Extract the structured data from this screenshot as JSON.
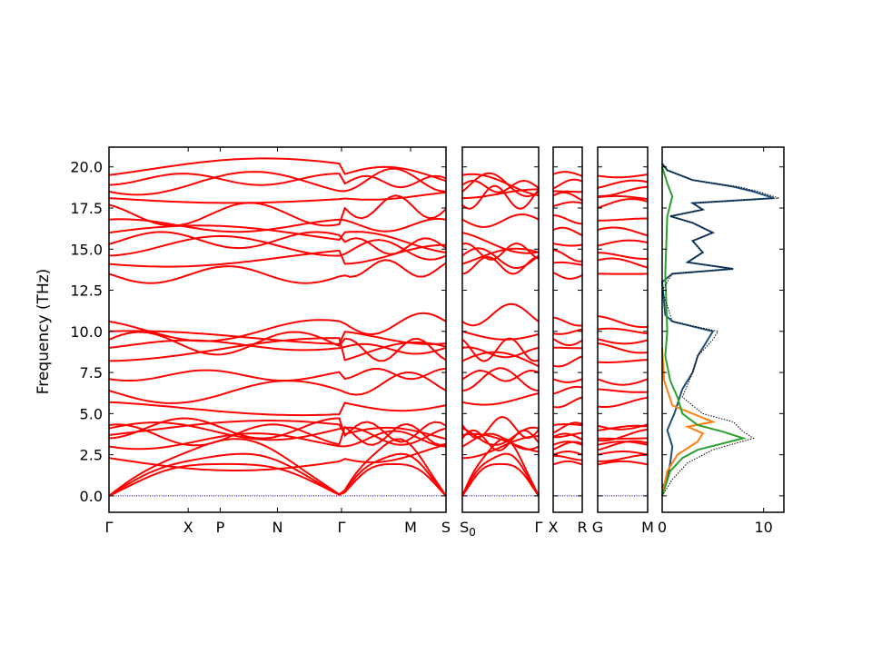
{
  "chart_data": {
    "type": "line",
    "ylabel": "Frequency (THz)",
    "ylim": [
      -1.0,
      21.2
    ],
    "yticks": [
      "0.0",
      "2.5",
      "5.0",
      "7.5",
      "10.0",
      "12.5",
      "15.0",
      "17.5",
      "20.0"
    ],
    "ytick_values": [
      0,
      2.5,
      5.0,
      7.5,
      10.0,
      12.5,
      15.0,
      17.5,
      20.0
    ],
    "band_color": "#ff0000",
    "zero_line_color": "#0000cc",
    "panels": [
      {
        "labels": [
          "Γ",
          "X",
          "P",
          "N",
          "Γ",
          "M",
          "S"
        ],
        "label_positions": [
          0,
          0.235,
          0.33,
          0.5,
          0.69,
          0.895,
          1.0
        ]
      },
      {
        "labels": [
          "S0",
          "Γ"
        ],
        "label_positions": [
          0,
          1.0
        ]
      },
      {
        "labels": [
          "X",
          "R"
        ],
        "label_positions": [
          0,
          1.0
        ]
      },
      {
        "labels": [
          "G",
          "M"
        ],
        "label_positions": [
          0,
          1.0
        ]
      }
    ],
    "bands_at_gamma": [
      0,
      0,
      0,
      2.3,
      3.0,
      3.5,
      3.7,
      4.1,
      4.3,
      5.7,
      6.4,
      7.1,
      8.2,
      9.0,
      9.5,
      10.0,
      10.6,
      13.5,
      14.1,
      14.6,
      15.3,
      16.0,
      16.8,
      17.7,
      18.1,
      18.5,
      18.9,
      19.5
    ],
    "dos": {
      "xlim": [
        0,
        12
      ],
      "xticks": [
        "0",
        "10"
      ],
      "xtick_values": [
        0,
        10
      ],
      "series": [
        {
          "color": "#1f4e79",
          "style": "solid",
          "points": [
            [
              0.0,
              0.5
            ],
            [
              0.5,
              1.0
            ],
            [
              0.8,
              2.0
            ],
            [
              1.0,
              3.0
            ],
            [
              0.5,
              4.0
            ],
            [
              1.2,
              5.0
            ],
            [
              2.0,
              6.5
            ],
            [
              3.0,
              7.5
            ],
            [
              3.5,
              8.5
            ],
            [
              4.5,
              9.5
            ],
            [
              5.0,
              10.0
            ],
            [
              1.0,
              10.6
            ],
            [
              0.3,
              11.0
            ],
            [
              0.0,
              13.0
            ],
            [
              1.0,
              13.5
            ],
            [
              7.0,
              13.8
            ],
            [
              2.5,
              14.2
            ],
            [
              4.0,
              14.8
            ],
            [
              3.0,
              15.5
            ],
            [
              5.0,
              16.0
            ],
            [
              3.0,
              16.6
            ],
            [
              0.8,
              17.0
            ],
            [
              4.0,
              17.4
            ],
            [
              3.0,
              17.8
            ],
            [
              11.0,
              18.1
            ],
            [
              9.0,
              18.5
            ],
            [
              7.0,
              18.8
            ],
            [
              3.0,
              19.2
            ],
            [
              0.5,
              19.8
            ],
            [
              0.0,
              20.2
            ]
          ]
        },
        {
          "color": "#ff7f0e",
          "style": "solid",
          "points": [
            [
              0.0,
              0.0
            ],
            [
              0.5,
              1.5
            ],
            [
              1.5,
              2.5
            ],
            [
              3.5,
              3.3
            ],
            [
              4.0,
              3.8
            ],
            [
              2.5,
              4.2
            ],
            [
              5.0,
              4.5
            ],
            [
              1.0,
              5.5
            ],
            [
              0.2,
              7.0
            ],
            [
              0.0,
              9.0
            ]
          ]
        },
        {
          "color": "#2ca02c",
          "style": "solid",
          "points": [
            [
              0.0,
              0.0
            ],
            [
              0.8,
              1.5
            ],
            [
              2.0,
              2.3
            ],
            [
              3.5,
              2.8
            ],
            [
              8.0,
              3.5
            ],
            [
              6.0,
              3.9
            ],
            [
              3.5,
              4.3
            ],
            [
              2.0,
              5.0
            ],
            [
              1.5,
              6.0
            ],
            [
              0.8,
              7.0
            ],
            [
              0.3,
              8.5
            ],
            [
              0.5,
              10.0
            ],
            [
              0.3,
              13.5
            ],
            [
              0.5,
              17.0
            ],
            [
              1.0,
              18.2
            ],
            [
              0.5,
              19.0
            ],
            [
              0.0,
              20.0
            ]
          ]
        },
        {
          "color": "#000000",
          "style": "dotted",
          "points": [
            [
              0.0,
              0.0
            ],
            [
              1.0,
              1.0
            ],
            [
              2.5,
              2.0
            ],
            [
              5.0,
              2.8
            ],
            [
              9.0,
              3.5
            ],
            [
              8.0,
              3.9
            ],
            [
              7.0,
              4.5
            ],
            [
              4.0,
              5.0
            ],
            [
              2.0,
              6.0
            ],
            [
              3.0,
              7.5
            ],
            [
              3.5,
              8.5
            ],
            [
              5.0,
              9.5
            ],
            [
              5.5,
              10.0
            ],
            [
              1.0,
              10.6
            ],
            [
              0.0,
              12.5
            ],
            [
              1.0,
              13.5
            ],
            [
              7.0,
              13.8
            ],
            [
              2.5,
              14.2
            ],
            [
              4.0,
              14.8
            ],
            [
              3.0,
              15.5
            ],
            [
              5.0,
              16.0
            ],
            [
              3.0,
              16.6
            ],
            [
              0.8,
              17.0
            ],
            [
              4.0,
              17.4
            ],
            [
              3.0,
              17.8
            ],
            [
              11.5,
              18.1
            ],
            [
              9.5,
              18.5
            ],
            [
              7.5,
              18.8
            ],
            [
              3.0,
              19.2
            ],
            [
              0.5,
              19.8
            ],
            [
              0.0,
              20.2
            ]
          ]
        }
      ]
    }
  }
}
